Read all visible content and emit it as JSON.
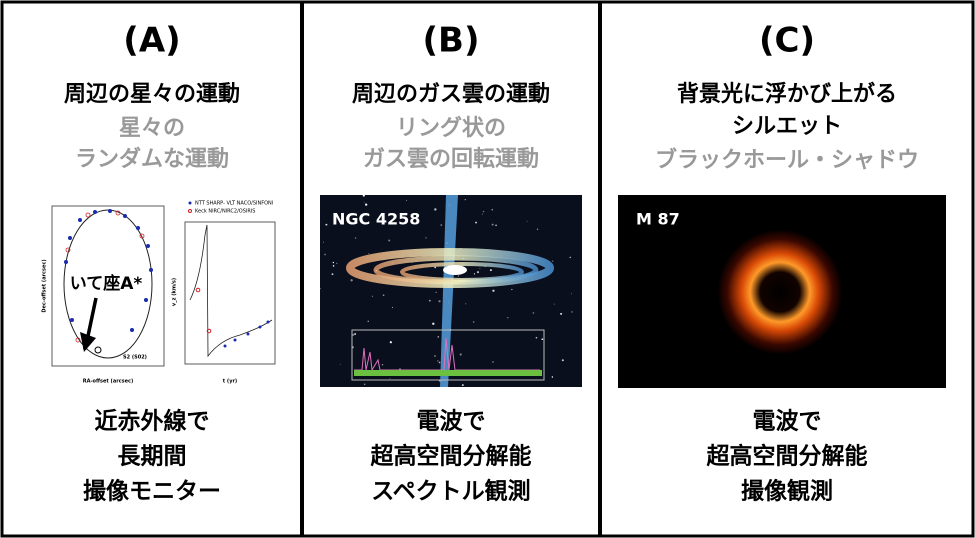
{
  "panels": [
    {
      "label": "(A)",
      "heading": [
        "周辺の星々の運動"
      ],
      "subheading": [
        "星々の",
        "ランダムな運動"
      ],
      "figure": {
        "marker": "いて座A*",
        "legend": [
          "NTT SHARP- VLT NACO/SINFONI",
          "Keck NIRC/NIRC2/OSIRIS"
        ],
        "x_labels": [
          "RA-offset (arcsec)",
          "t (yr)"
        ],
        "y_labels": [
          "Dec-offset (arcsec)",
          "v_z (km/s)"
        ],
        "star": "S2 (S02)"
      },
      "footer": [
        "近赤外線で",
        "長期間",
        "撮像モニター"
      ]
    },
    {
      "label": "(B)",
      "heading": [
        "周辺のガス雲の運動"
      ],
      "subheading": [
        "リング状の",
        "ガス雲の回転運動"
      ],
      "figure": {
        "name": "NGC 4258"
      },
      "footer": [
        "電波で",
        "超高空間分解能",
        "スペクトル観測"
      ]
    },
    {
      "label": "(C)",
      "heading": [
        "背景光に浮かび上がる",
        "シルエット"
      ],
      "subheading": [
        "ブラックホール・シャドウ"
      ],
      "figure": {
        "name": "M 87"
      },
      "footer": [
        "電波で",
        "超高空間分解能",
        "撮像観測"
      ]
    }
  ]
}
